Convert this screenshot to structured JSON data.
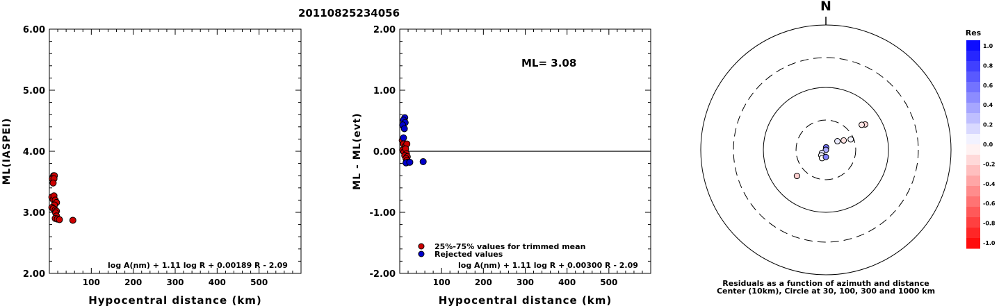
{
  "title": "20110825234056",
  "colors": {
    "kept": "#cc0000",
    "rejected": "#0000cc",
    "line": "#000000"
  },
  "chart_data": [
    {
      "type": "scatter",
      "ylabel": "ML(IASPEI)",
      "xlabel": "Hypocentral distance (km)",
      "ylim": [
        2.0,
        6.0
      ],
      "xlim": [
        0,
        600
      ],
      "y_ticks": [
        "6.00",
        "5.00",
        "4.00",
        "3.00",
        "2.00"
      ],
      "x_ticks": [
        "100",
        "200",
        "300",
        "400",
        "500"
      ],
      "formula": "log A(nm) + 1.11 log R + 0.00189 R - 2.09",
      "points": [
        {
          "x": 10,
          "y": 3.6
        },
        {
          "x": 12,
          "y": 3.6
        },
        {
          "x": 7,
          "y": 3.55
        },
        {
          "x": 11,
          "y": 3.55
        },
        {
          "x": 9,
          "y": 3.48
        },
        {
          "x": 6,
          "y": 3.25
        },
        {
          "x": 9,
          "y": 3.21
        },
        {
          "x": 11,
          "y": 3.27
        },
        {
          "x": 14,
          "y": 3.2
        },
        {
          "x": 17,
          "y": 3.16
        },
        {
          "x": 12,
          "y": 3.12
        },
        {
          "x": 6,
          "y": 3.08
        },
        {
          "x": 9,
          "y": 3.06
        },
        {
          "x": 14,
          "y": 3.04
        },
        {
          "x": 17,
          "y": 3.02
        },
        {
          "x": 15,
          "y": 2.99
        },
        {
          "x": 17,
          "y": 2.94
        },
        {
          "x": 14,
          "y": 2.9
        },
        {
          "x": 19,
          "y": 2.89
        },
        {
          "x": 24,
          "y": 2.88
        },
        {
          "x": 56,
          "y": 2.87
        }
      ]
    },
    {
      "type": "scatter",
      "ylabel": "ML - ML(evt)",
      "xlabel": "Hypocentral distance (km)",
      "ylim": [
        -2.0,
        2.0
      ],
      "xlim": [
        0,
        600
      ],
      "y_ticks": [
        "2.00",
        "1.00",
        "0.00",
        "-1.00",
        "-2.00"
      ],
      "x_ticks": [
        "100",
        "200",
        "300",
        "400",
        "500"
      ],
      "annotation": "ML= 3.08",
      "reference_line_y": 0.0,
      "formula": "log A(nm) + 1.11 log R + 0.00300 R - 2.09",
      "legend": [
        "25%-75% values for trimmed mean",
        "Rejected values"
      ],
      "legend_placement": "bottom-left",
      "series": [
        {
          "name": "25%-75% values for trimmed mean",
          "points": [
            {
              "x": 6,
              "y": 0.18
            },
            {
              "x": 9,
              "y": 0.12
            },
            {
              "x": 13,
              "y": 0.08
            },
            {
              "x": 17,
              "y": 0.12
            },
            {
              "x": 7,
              "y": 0.02
            },
            {
              "x": 10,
              "y": -0.01
            },
            {
              "x": 14,
              "y": 0.04
            },
            {
              "x": 16,
              "y": -0.04
            },
            {
              "x": 12,
              "y": -0.07
            },
            {
              "x": 18,
              "y": -0.09
            },
            {
              "x": 15,
              "y": -0.12
            },
            {
              "x": 17,
              "y": -0.15
            }
          ]
        },
        {
          "name": "Rejected values",
          "points": [
            {
              "x": 12,
              "y": 0.55
            },
            {
              "x": 9,
              "y": 0.51
            },
            {
              "x": 13,
              "y": 0.47
            },
            {
              "x": 7,
              "y": 0.43
            },
            {
              "x": 11,
              "y": 0.37
            },
            {
              "x": 9,
              "y": 0.22
            },
            {
              "x": 19,
              "y": -0.18
            },
            {
              "x": 15,
              "y": -0.19
            },
            {
              "x": 24,
              "y": -0.18
            },
            {
              "x": 56,
              "y": -0.17
            }
          ]
        }
      ]
    },
    {
      "type": "scatter",
      "subtype": "polar",
      "north_label": "N",
      "caption_line1": "Residuals as a function of azimuth and distance",
      "caption_line2": "Center (10km), Circle at 30, 100, 300 and 1000 km",
      "rings_km": [
        30,
        100,
        300,
        1000
      ],
      "colorbar": {
        "title": "Res",
        "range": [
          -1.0,
          1.0
        ],
        "labels": [
          "1.0",
          "0.8",
          "0.6",
          "0.4",
          "0.2",
          "0.0",
          "-0.2",
          "-0.4",
          "-0.6",
          "-0.8",
          "-1.0"
        ],
        "positive_color": "#0000ff",
        "negative_color": "#ff0000"
      },
      "points": [
        {
          "azimuth_deg": 57,
          "distance_km": 56,
          "residual": -0.17
        },
        {
          "azimuth_deg": 55,
          "distance_km": 50,
          "residual": -0.1
        },
        {
          "azimuth_deg": 62,
          "distance_km": 21,
          "residual": -0.12
        },
        {
          "azimuth_deg": 67,
          "distance_km": 27,
          "residual": 0.04
        },
        {
          "azimuth_deg": 53,
          "distance_km": 17,
          "residual": 0.08
        },
        {
          "azimuth_deg": 5,
          "distance_km": 11,
          "residual": 0.55
        },
        {
          "azimuth_deg": 12,
          "distance_km": 10,
          "residual": 0.45
        },
        {
          "azimuth_deg": 348,
          "distance_km": 8,
          "residual": 0.35
        },
        {
          "azimuth_deg": 232,
          "distance_km": 12,
          "residual": 0.12
        },
        {
          "azimuth_deg": 220,
          "distance_km": 13,
          "residual": 0.04
        },
        {
          "azimuth_deg": 205,
          "distance_km": 14,
          "residual": -0.02
        },
        {
          "azimuth_deg": 180,
          "distance_km": 13,
          "residual": 0.5
        },
        {
          "azimuth_deg": 228,
          "distance_km": 42,
          "residual": -0.18
        }
      ]
    }
  ]
}
